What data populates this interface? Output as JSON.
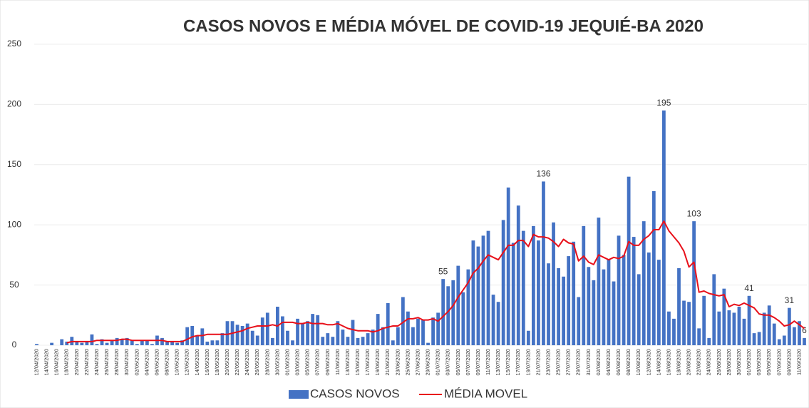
{
  "chart_data": {
    "type": "bar_line",
    "title": "CASOS NOVOS E MÉDIA MÓVEL DE COVID-19 JEQUIÉ-BA 2020",
    "categories": [
      "12/04/2020",
      null,
      "14/04/2020",
      null,
      "16/04/2020",
      null,
      "18/04/2020",
      null,
      "20/04/2020",
      null,
      "22/04/2020",
      null,
      "24/04/2020",
      null,
      "26/04/2020",
      null,
      "28/04/2020",
      null,
      "30/04/2020",
      null,
      "02/05/2020",
      null,
      "04/05/2020",
      null,
      "06/05/2020",
      null,
      "08/05/2020",
      null,
      "10/05/2020",
      null,
      "12/05/2020",
      null,
      "14/05/2020",
      null,
      "16/05/2020",
      null,
      "18/05/2020",
      null,
      "20/05/2020",
      null,
      "22/05/2020",
      null,
      "24/05/2020",
      null,
      "26/05/2020",
      null,
      "28/05/2020",
      null,
      "30/05/2020",
      null,
      "01/06/2020",
      null,
      "03/06/2020",
      null,
      "05/06/2020",
      null,
      "07/06/2020",
      null,
      "09/06/2020",
      null,
      "11/06/2020",
      null,
      "13/06/2020",
      null,
      "15/06/2020",
      null,
      "17/06/2020",
      null,
      "19/06/2020",
      null,
      "21/06/2020",
      null,
      "23/06/2020",
      null,
      "25/06/2020",
      null,
      "27/06/2020",
      null,
      "29/06/2020",
      null,
      "01/07/2020",
      null,
      "03/07/2020",
      null,
      "05/07/2020",
      null,
      "07/07/2020",
      null,
      "09/07/2020",
      null,
      "11/07/2020",
      null,
      "13/07/2020",
      null,
      "15/07/2020",
      null,
      "17/07/2020",
      null,
      "19/07/2020",
      null,
      "21/07/2020",
      null,
      "23/07/2020",
      null,
      "25/07/2020",
      null,
      "27/07/2020",
      null,
      "29/07/2020",
      null,
      "31/07/2020",
      null,
      "02/08/2020",
      null,
      "04/08/2020",
      null,
      "06/08/2020",
      null,
      "08/08/2020",
      null,
      "10/08/2020",
      null,
      "12/08/2020",
      null,
      "14/08/2020",
      null,
      "16/08/2020",
      null,
      "18/08/2020",
      null,
      "20/08/2020",
      null,
      "22/08/2020",
      null,
      "24/08/2020",
      null,
      "26/08/2020",
      null,
      "28/08/2020",
      null,
      "30/08/2020",
      null,
      "01/09/2020",
      null,
      "03/09/2020",
      null,
      "05/09/2020",
      null,
      "07/09/2020",
      null,
      "09/09/2020",
      null,
      "11/09/2020",
      null
    ],
    "series": [
      {
        "name": "CASOS NOVOS",
        "color": "#4472c4",
        "values": [
          1,
          0,
          0,
          2,
          0,
          5,
          3,
          7,
          3,
          2,
          3,
          9,
          1,
          5,
          2,
          4,
          6,
          5,
          6,
          4,
          1,
          4,
          4,
          1,
          8,
          6,
          3,
          3,
          2,
          4,
          15,
          16,
          8,
          14,
          3,
          4,
          4,
          10,
          20,
          20,
          17,
          16,
          18,
          12,
          8,
          23,
          27,
          6,
          32,
          24,
          12,
          4,
          22,
          18,
          20,
          26,
          25,
          7,
          10,
          7,
          20,
          13,
          7,
          21,
          6,
          7,
          10,
          13,
          26,
          15,
          35,
          4,
          15,
          40,
          28,
          15,
          22,
          21,
          2,
          23,
          27,
          55,
          49,
          54,
          66,
          44,
          63,
          87,
          82,
          91,
          95,
          42,
          36,
          104,
          131,
          85,
          116,
          95,
          12,
          99,
          87,
          136,
          68,
          102,
          64,
          57,
          74,
          86,
          40,
          99,
          65,
          54,
          106,
          63,
          71,
          53,
          91,
          75,
          140,
          90,
          59,
          103,
          77,
          128,
          71,
          195,
          28,
          22,
          64,
          37,
          36,
          103,
          14,
          41,
          6,
          59,
          28,
          47,
          29,
          27,
          32,
          22,
          41,
          10,
          11,
          27,
          33,
          18,
          5,
          8,
          31,
          15,
          20,
          6
        ],
        "value_labels": [
          null,
          null,
          null,
          null,
          null,
          null,
          null,
          null,
          null,
          null,
          null,
          null,
          null,
          null,
          null,
          null,
          null,
          null,
          null,
          null,
          null,
          null,
          null,
          null,
          null,
          null,
          null,
          null,
          null,
          null,
          null,
          null,
          null,
          null,
          null,
          null,
          null,
          null,
          null,
          null,
          null,
          null,
          null,
          null,
          null,
          null,
          null,
          null,
          null,
          null,
          null,
          null,
          null,
          null,
          null,
          null,
          null,
          null,
          null,
          null,
          null,
          null,
          null,
          null,
          null,
          null,
          null,
          null,
          null,
          null,
          null,
          null,
          null,
          null,
          null,
          null,
          null,
          null,
          null,
          null,
          null,
          "55",
          null,
          null,
          null,
          null,
          null,
          null,
          null,
          null,
          null,
          null,
          null,
          null,
          null,
          null,
          null,
          null,
          null,
          null,
          null,
          "136",
          null,
          null,
          null,
          null,
          null,
          null,
          null,
          null,
          null,
          null,
          null,
          null,
          null,
          null,
          null,
          null,
          null,
          null,
          null,
          null,
          null,
          null,
          null,
          "195",
          null,
          null,
          null,
          null,
          null,
          "103",
          null,
          null,
          null,
          null,
          null,
          null,
          null,
          null,
          null,
          null,
          "41",
          null,
          null,
          null,
          null,
          null,
          null,
          null,
          "31",
          null,
          null,
          "6"
        ]
      },
      {
        "name": "MÉDIA MOVEL",
        "color": "#e8101a",
        "values": [
          null,
          null,
          null,
          null,
          null,
          null,
          2,
          3,
          3,
          3,
          3,
          3,
          4,
          4,
          4,
          4,
          4,
          5,
          5,
          4,
          4,
          4,
          4,
          4,
          4,
          4,
          3,
          3,
          3,
          3,
          5,
          7,
          8,
          8,
          9,
          9,
          9,
          9,
          9,
          10,
          11,
          12,
          14,
          15,
          16,
          16,
          16,
          17,
          16,
          19,
          19,
          19,
          18,
          18,
          19,
          18,
          18,
          18,
          17,
          17,
          18,
          16,
          14,
          13,
          12,
          12,
          12,
          11,
          12,
          14,
          15,
          16,
          16,
          19,
          22,
          22,
          23,
          21,
          21,
          22,
          20,
          24,
          28,
          33,
          40,
          46,
          52,
          60,
          64,
          70,
          75,
          73,
          71,
          77,
          83,
          83,
          87,
          87,
          82,
          92,
          90,
          90,
          89,
          86,
          82,
          88,
          85,
          84,
          70,
          74,
          69,
          67,
          75,
          73,
          71,
          73,
          72,
          74,
          86,
          83,
          83,
          88,
          91,
          96,
          96,
          103,
          95,
          90,
          85,
          78,
          65,
          69,
          44,
          45,
          43,
          42,
          41,
          42,
          32,
          34,
          33,
          35,
          33,
          31,
          26,
          25,
          25,
          23,
          20,
          16,
          17,
          20,
          17,
          14
        ]
      }
    ],
    "ylim": [
      0,
      250
    ],
    "yticks": [
      0,
      50,
      100,
      150,
      200,
      250
    ],
    "grid": true,
    "legend": "bottom"
  }
}
